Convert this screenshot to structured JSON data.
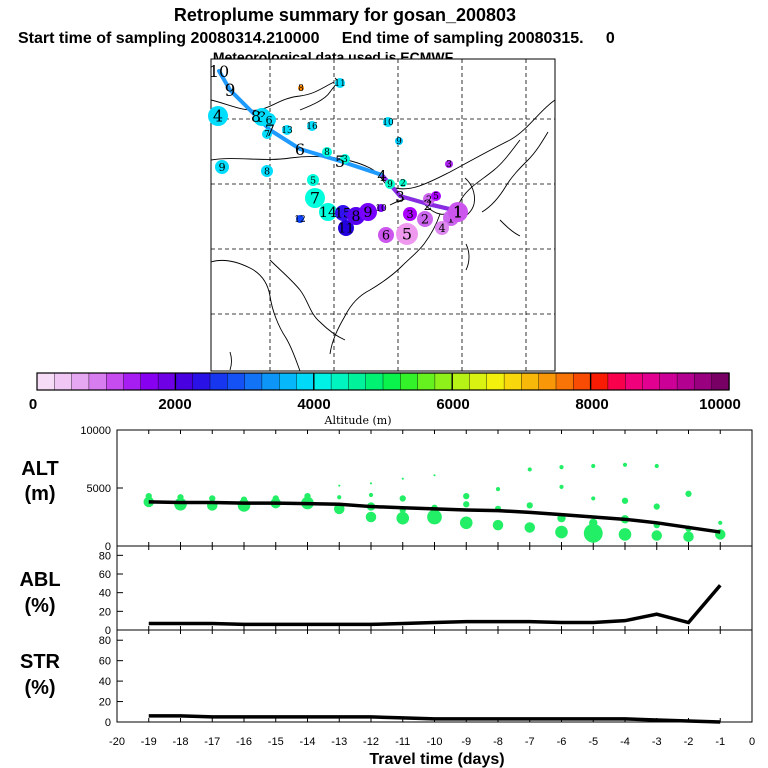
{
  "header": {
    "title": "Retroplume summary for gosan_200803",
    "line2": "Start time of sampling 20080314.210000     End time of sampling 20080315.     0",
    "line3": "Meteorological data used is ECMWF"
  },
  "colorbar": {
    "label": "Altitude (m)",
    "ticks": [
      "0",
      "2000",
      "4000",
      "6000",
      "8000",
      "10000"
    ],
    "range": [
      0,
      10000
    ]
  },
  "map": {
    "track": [
      {
        "label": "10",
        "c": "#00ccff"
      },
      {
        "label": "9",
        "c": "#00ccff"
      },
      {
        "label": "8",
        "c": "#00ccff"
      },
      {
        "label": "7",
        "c": "#00ccff"
      },
      {
        "label": "6",
        "c": "#00ccff"
      },
      {
        "label": "5",
        "c": "#00ccff"
      },
      {
        "label": "4",
        "c": "#2255ff"
      },
      {
        "label": "3",
        "c": "#7700ff"
      },
      {
        "label": "2",
        "c": "#9900ee"
      },
      {
        "label": "1",
        "c": "#cc44ee"
      }
    ],
    "markers": [
      {
        "label": "4",
        "c": "#00ddff"
      },
      {
        "label": "9",
        "c": "#00ddff"
      },
      {
        "label": "3",
        "c": "#00ddff"
      },
      {
        "label": "8",
        "c": "#00ddff"
      },
      {
        "label": "6",
        "c": "#00ddff"
      },
      {
        "label": "7",
        "c": "#00ddff"
      },
      {
        "label": "13",
        "c": "#00ddff"
      },
      {
        "label": "16",
        "c": "#00ddff"
      },
      {
        "label": "8",
        "c": "#ff8800"
      },
      {
        "label": "11",
        "c": "#00ddff"
      },
      {
        "label": "10",
        "c": "#00ddff"
      },
      {
        "label": "9",
        "c": "#00ccff"
      },
      {
        "label": "9",
        "c": "#00ffcc"
      },
      {
        "label": "8",
        "c": "#00ffdd"
      },
      {
        "label": "3",
        "c": "#00ffdd"
      },
      {
        "label": "5",
        "c": "#00ffdd"
      },
      {
        "label": "7",
        "c": "#00ffdd"
      },
      {
        "label": "12",
        "c": "#1144ff"
      },
      {
        "label": "14",
        "c": "#00ffdd"
      },
      {
        "label": "15",
        "c": "#3311ee"
      },
      {
        "label": "11",
        "c": "#2200dd"
      },
      {
        "label": "8",
        "c": "#5500ee"
      },
      {
        "label": "9",
        "c": "#7700ff"
      },
      {
        "label": "10",
        "c": "#7700ff"
      },
      {
        "label": "3",
        "c": "#aa00ff"
      },
      {
        "label": "2",
        "c": "#cc66ee"
      },
      {
        "label": "1",
        "c": "#cc66ee"
      },
      {
        "label": "5",
        "c": "#ee99ee"
      },
      {
        "label": "6",
        "c": "#cc55ee"
      },
      {
        "label": "4",
        "c": "#dd88ee"
      },
      {
        "label": "1",
        "c": "#cc55ee"
      },
      {
        "label": "2",
        "c": "#cc66ee"
      },
      {
        "label": "5",
        "c": "#aa00ff"
      },
      {
        "label": "2",
        "c": "#00ffcc"
      },
      {
        "label": "3",
        "c": "#aa22ee"
      }
    ]
  },
  "chart_data": [
    {
      "type": "scatter",
      "name": "ALT",
      "ylabel": "ALT (m)",
      "ylabel_line1": "ALT",
      "ylabel_line2": "(m)",
      "ylim": [
        0,
        10000
      ],
      "yticks": [
        "0",
        "5000",
        "10000"
      ],
      "x": [
        -19,
        -18,
        -17,
        -16,
        -15,
        -14,
        -13,
        -12,
        -11,
        -10,
        -9,
        -8,
        -7,
        -6,
        -5,
        -4,
        -3,
        -2,
        -1
      ],
      "mean": [
        3800,
        3750,
        3750,
        3700,
        3700,
        3650,
        3600,
        3400,
        3300,
        3200,
        3100,
        3050,
        2900,
        2700,
        2500,
        2300,
        2000,
        1600,
        1200
      ],
      "points": [
        [
          -19,
          3800,
          5
        ],
        [
          -19,
          4300,
          3
        ],
        [
          -18,
          3600,
          6
        ],
        [
          -18,
          4200,
          3
        ],
        [
          -17,
          3500,
          5
        ],
        [
          -17,
          4100,
          3
        ],
        [
          -16,
          3500,
          6
        ],
        [
          -16,
          4000,
          3
        ],
        [
          -15,
          3700,
          5
        ],
        [
          -15,
          4100,
          3
        ],
        [
          -14,
          3700,
          6
        ],
        [
          -14,
          4300,
          3
        ],
        [
          -13,
          3200,
          5
        ],
        [
          -13,
          4200,
          2
        ],
        [
          -13,
          5200,
          1
        ],
        [
          -12,
          2500,
          5
        ],
        [
          -12,
          3400,
          4
        ],
        [
          -12,
          4400,
          2
        ],
        [
          -12,
          5400,
          1
        ],
        [
          -11,
          2400,
          6
        ],
        [
          -11,
          3100,
          3
        ],
        [
          -11,
          4100,
          3
        ],
        [
          -11,
          5800,
          1
        ],
        [
          -10,
          2500,
          7
        ],
        [
          -10,
          3300,
          3
        ],
        [
          -10,
          6100,
          1
        ],
        [
          -9,
          2000,
          6
        ],
        [
          -9,
          3600,
          3
        ],
        [
          -9,
          4300,
          3
        ],
        [
          -8,
          1800,
          5
        ],
        [
          -8,
          3200,
          3
        ],
        [
          -8,
          4900,
          2
        ],
        [
          -7,
          1600,
          5
        ],
        [
          -7,
          3500,
          3
        ],
        [
          -7,
          6600,
          2
        ],
        [
          -6,
          1200,
          6
        ],
        [
          -6,
          2400,
          4
        ],
        [
          -6,
          5100,
          2
        ],
        [
          -6,
          6800,
          2
        ],
        [
          -5,
          1100,
          9
        ],
        [
          -5,
          2000,
          4
        ],
        [
          -5,
          4100,
          2
        ],
        [
          -5,
          6900,
          2
        ],
        [
          -4,
          1000,
          6
        ],
        [
          -4,
          2300,
          4
        ],
        [
          -4,
          3900,
          3
        ],
        [
          -4,
          7000,
          2
        ],
        [
          -3,
          900,
          5
        ],
        [
          -3,
          1800,
          3
        ],
        [
          -3,
          3400,
          3
        ],
        [
          -3,
          6900,
          2
        ],
        [
          -2,
          800,
          5
        ],
        [
          -2,
          1500,
          3
        ],
        [
          -2,
          4500,
          3
        ],
        [
          -1,
          1000,
          5
        ],
        [
          -1,
          2000,
          2
        ]
      ]
    },
    {
      "type": "line",
      "name": "ABL",
      "ylabel": "ABL (%)",
      "ylabel_line1": "ABL",
      "ylabel_line2": "(%)",
      "ylim": [
        0,
        90
      ],
      "yticks": [
        "0",
        "20",
        "40",
        "60",
        "80"
      ],
      "x": [
        -19,
        -18,
        -17,
        -16,
        -15,
        -14,
        -13,
        -12,
        -11,
        -10,
        -9,
        -8,
        -7,
        -6,
        -5,
        -4,
        -3,
        -2,
        -1
      ],
      "y": [
        7,
        7,
        7,
        6,
        6,
        6,
        6,
        6,
        7,
        8,
        9,
        9,
        9,
        8,
        8,
        10,
        17,
        8,
        48
      ]
    },
    {
      "type": "line",
      "name": "STR",
      "ylabel": "STR (%)",
      "ylabel_line1": "STR",
      "ylabel_line2": "(%)",
      "ylim": [
        0,
        90
      ],
      "yticks": [
        "0",
        "20",
        "40",
        "60",
        "80"
      ],
      "x": [
        -19,
        -18,
        -17,
        -16,
        -15,
        -14,
        -13,
        -12,
        -11,
        -10,
        -9,
        -8,
        -7,
        -6,
        -5,
        -4,
        -3,
        -2,
        -1
      ],
      "y": [
        6,
        6,
        5,
        5,
        5,
        5,
        5,
        5,
        4,
        3,
        3,
        3,
        3,
        3,
        3,
        3,
        2,
        1,
        0
      ],
      "xlabel": "Travel time (days)",
      "xticks": [
        "-20",
        "-19",
        "-18",
        "-17",
        "-16",
        "-15",
        "-14",
        "-13",
        "-12",
        "-11",
        "-10",
        "-9",
        "-8",
        "-7",
        "-6",
        "-5",
        "-4",
        "-3",
        "-2",
        "-1",
        "0"
      ],
      "xlim": [
        -20,
        0
      ]
    }
  ]
}
